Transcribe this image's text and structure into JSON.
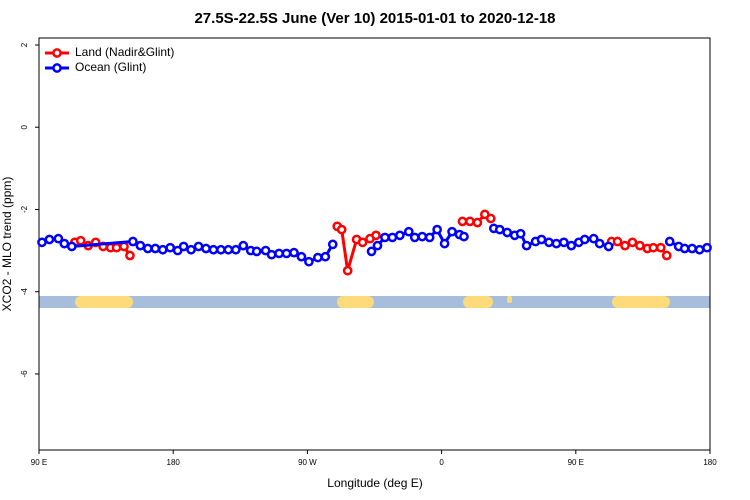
{
  "chart_data": {
    "type": "line",
    "title": "27.5S-22.5S June (Ver 10)   2015-01-01 to 2020-12-18",
    "x_label": "Longitude (deg E)",
    "y_label": "XCO2 - MLO trend (ppm)",
    "xlim": [
      90,
      540
    ],
    "xticks": [
      {
        "value": 90,
        "label": "90 E"
      },
      180,
      {
        "value": 270,
        "label": "90 W"
      },
      {
        "value": 360,
        "label": "0"
      },
      {
        "value": 450,
        "label": "90 E"
      },
      {
        "value": 540,
        "label": "180"
      }
    ],
    "ylim": [
      -7.85,
      2.17
    ],
    "yticks": [
      2,
      0,
      -2,
      -4,
      -6
    ],
    "legend": "top-left",
    "series": [
      {
        "name": "Land (Nadir&Glint)",
        "color": "#ff0000",
        "x": [
          114,
          118,
          123,
          128,
          133,
          138,
          142,
          147,
          151,
          null,
          290,
          293,
          297,
          303,
          307,
          312,
          316,
          null,
          374,
          379,
          384,
          389,
          393,
          null,
          474,
          478,
          483,
          488,
          493,
          498,
          502,
          507,
          511
        ],
        "values": [
          -2.8,
          -2.76,
          -2.88,
          -2.8,
          -2.9,
          -2.93,
          -2.93,
          -2.9,
          -3.12,
          null,
          -2.41,
          -2.49,
          -3.49,
          -2.73,
          -2.8,
          -2.71,
          -2.63,
          null,
          -2.29,
          -2.29,
          -2.32,
          -2.12,
          -2.22,
          null,
          -2.78,
          -2.78,
          -2.88,
          -2.8,
          -2.88,
          -2.95,
          -2.93,
          -2.93,
          -3.12
        ]
      },
      {
        "name": "Ocean (Glint)",
        "color": "#0000ff",
        "x": [
          92,
          97,
          103,
          107,
          112,
          153,
          158,
          163,
          168,
          173,
          178,
          183,
          187,
          192,
          197,
          202,
          207,
          212,
          217,
          222,
          227,
          232,
          236,
          242,
          246,
          251,
          256,
          261,
          266,
          271,
          277,
          282,
          287,
          null,
          313,
          317,
          322,
          327,
          332,
          338,
          342,
          347,
          352,
          357,
          362,
          367,
          372,
          375,
          null,
          395,
          399,
          404,
          409,
          413,
          417,
          423,
          427,
          432,
          437,
          442,
          447,
          452,
          456,
          462,
          466,
          472,
          null,
          513,
          519,
          523,
          528,
          533,
          538
        ],
        "values": [
          -2.8,
          -2.73,
          -2.71,
          -2.83,
          -2.9,
          -2.78,
          -2.88,
          -2.95,
          -2.95,
          -2.98,
          -2.93,
          -3.0,
          -2.9,
          -2.98,
          -2.9,
          -2.95,
          -2.98,
          -2.98,
          -2.98,
          -2.98,
          -2.88,
          -3.0,
          -3.02,
          -3.0,
          -3.1,
          -3.07,
          -3.07,
          -3.05,
          -3.15,
          -3.27,
          -3.17,
          -3.15,
          -2.85,
          null,
          -3.02,
          -2.88,
          -2.68,
          -2.68,
          -2.63,
          -2.54,
          -2.68,
          -2.66,
          -2.68,
          -2.49,
          -2.83,
          -2.54,
          -2.61,
          -2.66,
          null,
          -2.46,
          -2.49,
          -2.56,
          -2.63,
          -2.59,
          -2.88,
          -2.78,
          -2.73,
          -2.8,
          -2.83,
          -2.8,
          -2.88,
          -2.8,
          -2.73,
          -2.71,
          -2.83,
          -2.9,
          null,
          -2.78,
          -2.9,
          -2.95,
          -2.95,
          -2.98,
          -2.93
        ]
      }
    ]
  }
}
